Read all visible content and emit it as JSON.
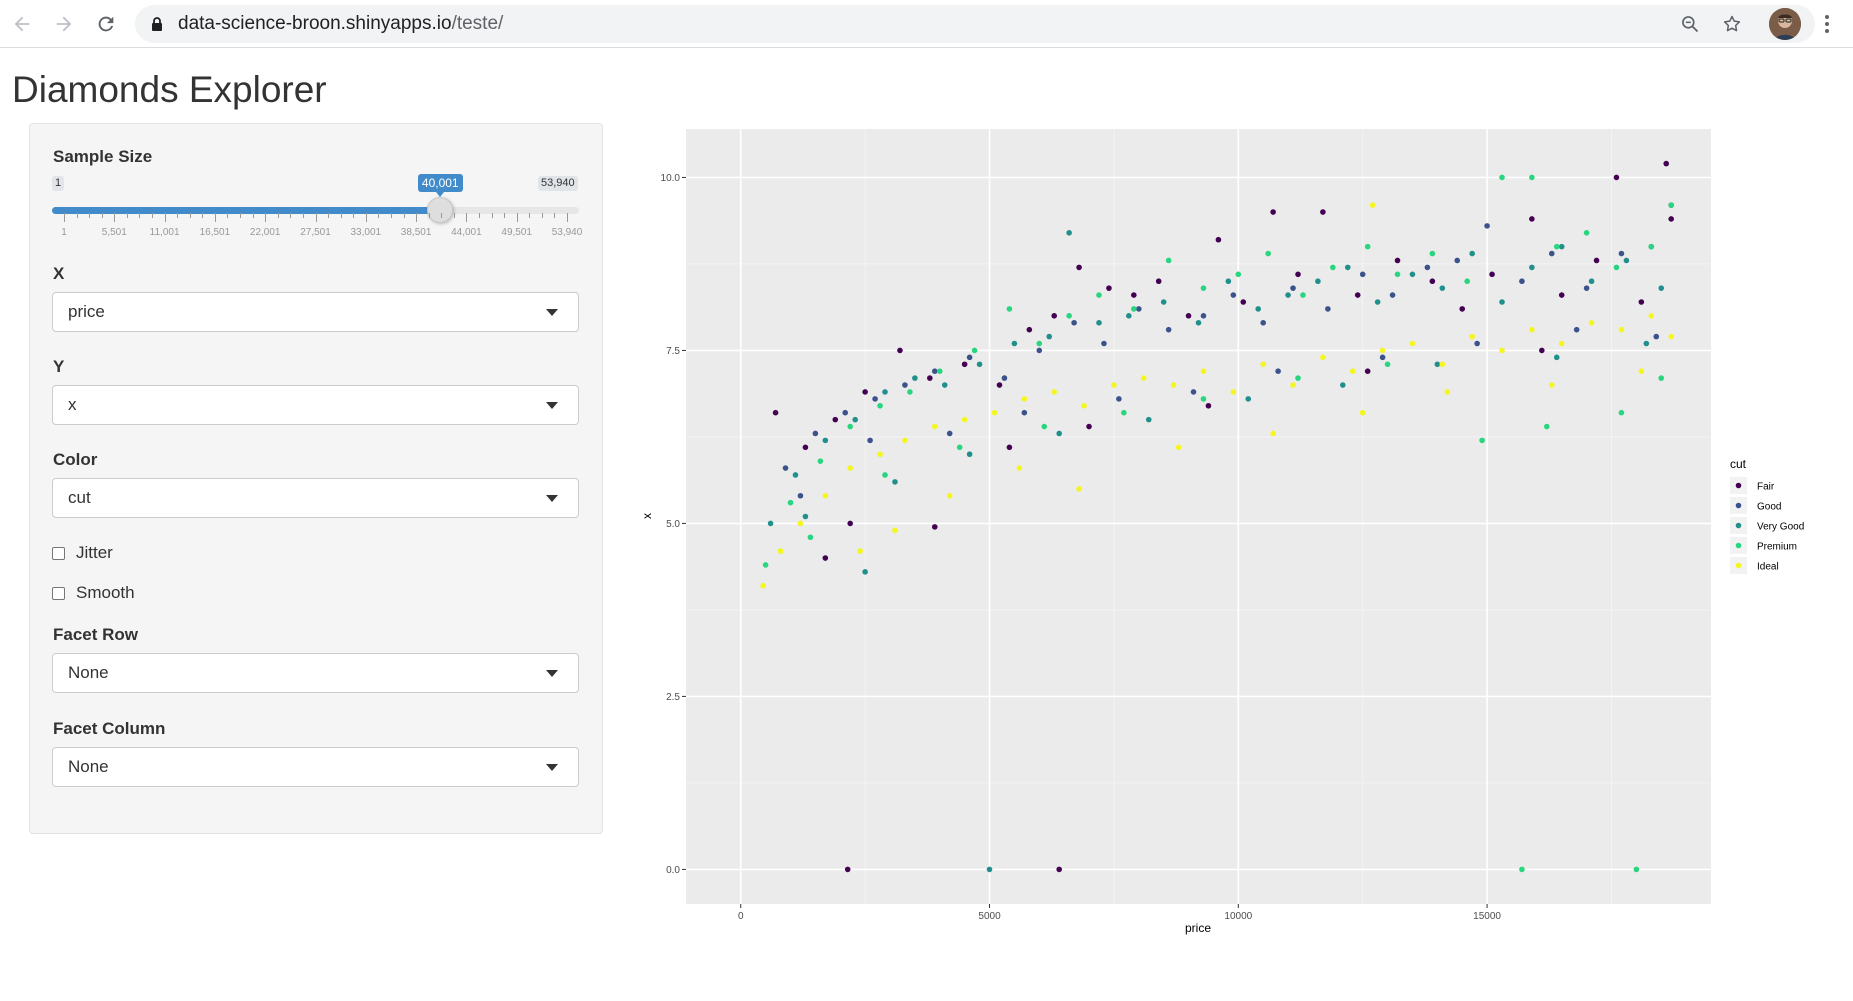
{
  "browser": {
    "url_host": "data-science-broon.shinyapps.io",
    "url_path": "/teste/"
  },
  "app": {
    "title": "Diamonds Explorer"
  },
  "sidebar": {
    "sample_size": {
      "label": "Sample Size",
      "min_label": "1",
      "max_label": "53,940",
      "value_label": "40,001",
      "value": 40001,
      "min": 1,
      "max": 53940,
      "ticks": [
        "1",
        "5,501",
        "11,001",
        "16,501",
        "22,001",
        "27,501",
        "33,001",
        "38,501",
        "44,001",
        "49,501",
        "53,940"
      ]
    },
    "x": {
      "label": "X",
      "value": "price"
    },
    "y": {
      "label": "Y",
      "value": "x"
    },
    "color": {
      "label": "Color",
      "value": "cut"
    },
    "jitter": {
      "label": "Jitter",
      "checked": false
    },
    "smooth": {
      "label": "Smooth",
      "checked": false
    },
    "facet_row": {
      "label": "Facet Row",
      "value": "None"
    },
    "facet_column": {
      "label": "Facet Column",
      "value": "None"
    }
  },
  "chart_data": {
    "type": "scatter",
    "xlabel": "price",
    "ylabel": "x",
    "xlim": [
      -1100,
      19500
    ],
    "ylim": [
      -0.5,
      10.7
    ],
    "x_ticks": [
      0,
      5000,
      10000,
      15000
    ],
    "x_tick_labels": [
      "0",
      "5000",
      "10000",
      "15000"
    ],
    "y_ticks": [
      0,
      2.5,
      5,
      7.5,
      10
    ],
    "y_tick_labels": [
      "0.0",
      "2.5",
      "5.0",
      "7.5",
      "10.0"
    ],
    "grid": true,
    "legend": {
      "title": "cut",
      "position": "right",
      "entries": [
        {
          "name": "Fair",
          "color": "#440154"
        },
        {
          "name": "Good",
          "color": "#3b528b"
        },
        {
          "name": "Very Good",
          "color": "#21908c"
        },
        {
          "name": "Premium",
          "color": "#27d67f"
        },
        {
          "name": "Ideal",
          "color": "#f5f51f"
        }
      ]
    },
    "series": [
      {
        "name": "Fair",
        "color": "#440154",
        "points": [
          [
            700,
            6.6
          ],
          [
            1300,
            6.1
          ],
          [
            1900,
            6.5
          ],
          [
            2500,
            6.9
          ],
          [
            3200,
            7.5
          ],
          [
            3800,
            7.1
          ],
          [
            4500,
            7.3
          ],
          [
            5200,
            7.0
          ],
          [
            5800,
            7.8
          ],
          [
            6300,
            8.0
          ],
          [
            6800,
            8.7
          ],
          [
            7400,
            8.4
          ],
          [
            7900,
            8.3
          ],
          [
            8400,
            8.5
          ],
          [
            9000,
            8.0
          ],
          [
            9600,
            9.1
          ],
          [
            10100,
            8.2
          ],
          [
            10700,
            9.5
          ],
          [
            11200,
            8.6
          ],
          [
            11700,
            9.5
          ],
          [
            12400,
            8.3
          ],
          [
            13200,
            8.8
          ],
          [
            13900,
            8.5
          ],
          [
            14500,
            8.1
          ],
          [
            15100,
            8.6
          ],
          [
            15900,
            9.4
          ],
          [
            16500,
            8.3
          ],
          [
            17200,
            8.8
          ],
          [
            17600,
            10.0
          ],
          [
            18100,
            8.2
          ],
          [
            18600,
            10.2
          ],
          [
            18700,
            9.4
          ],
          [
            2200,
            5.0
          ],
          [
            3900,
            4.95
          ],
          [
            1700,
            4.5
          ],
          [
            5400,
            6.1
          ],
          [
            7000,
            6.4
          ],
          [
            9400,
            6.7
          ],
          [
            12600,
            7.2
          ],
          [
            16100,
            7.5
          ],
          [
            2150,
            0
          ],
          [
            6400,
            0
          ]
        ]
      },
      {
        "name": "Good",
        "color": "#3b528b",
        "points": [
          [
            900,
            5.8
          ],
          [
            1500,
            6.3
          ],
          [
            2100,
            6.6
          ],
          [
            2700,
            6.8
          ],
          [
            3300,
            7.0
          ],
          [
            3900,
            7.2
          ],
          [
            4600,
            7.4
          ],
          [
            5300,
            7.1
          ],
          [
            6000,
            7.5
          ],
          [
            6700,
            7.9
          ],
          [
            7300,
            7.6
          ],
          [
            8000,
            8.1
          ],
          [
            8600,
            7.8
          ],
          [
            9300,
            8.0
          ],
          [
            9900,
            8.3
          ],
          [
            10500,
            7.9
          ],
          [
            11100,
            8.4
          ],
          [
            11800,
            8.1
          ],
          [
            12500,
            8.6
          ],
          [
            13100,
            8.3
          ],
          [
            13800,
            8.7
          ],
          [
            14400,
            8.8
          ],
          [
            15000,
            9.3
          ],
          [
            15700,
            8.5
          ],
          [
            16300,
            8.9
          ],
          [
            17000,
            8.4
          ],
          [
            17700,
            8.9
          ],
          [
            18300,
            9.0
          ],
          [
            18700,
            9.6
          ],
          [
            1200,
            5.4
          ],
          [
            2600,
            6.2
          ],
          [
            4200,
            6.3
          ],
          [
            5700,
            6.6
          ],
          [
            7600,
            6.8
          ],
          [
            9100,
            6.9
          ],
          [
            10800,
            7.2
          ],
          [
            12900,
            7.4
          ],
          [
            14800,
            7.6
          ],
          [
            16800,
            7.8
          ],
          [
            18400,
            7.7
          ]
        ]
      },
      {
        "name": "Very Good",
        "color": "#21908c",
        "points": [
          [
            600,
            5.0
          ],
          [
            1100,
            5.7
          ],
          [
            1700,
            6.2
          ],
          [
            2300,
            6.5
          ],
          [
            2900,
            6.9
          ],
          [
            3500,
            7.1
          ],
          [
            4100,
            7.0
          ],
          [
            4800,
            7.3
          ],
          [
            5500,
            7.6
          ],
          [
            6200,
            7.7
          ],
          [
            6600,
            9.2
          ],
          [
            7200,
            7.9
          ],
          [
            7800,
            8.0
          ],
          [
            8500,
            8.2
          ],
          [
            9200,
            7.9
          ],
          [
            9800,
            8.5
          ],
          [
            10400,
            8.1
          ],
          [
            11000,
            8.3
          ],
          [
            11600,
            8.5
          ],
          [
            12200,
            8.7
          ],
          [
            12800,
            8.2
          ],
          [
            13500,
            8.6
          ],
          [
            14100,
            8.4
          ],
          [
            14700,
            8.9
          ],
          [
            15300,
            8.2
          ],
          [
            15900,
            8.7
          ],
          [
            16500,
            9.0
          ],
          [
            17100,
            8.5
          ],
          [
            17800,
            8.8
          ],
          [
            18500,
            8.4
          ],
          [
            2500,
            4.3
          ],
          [
            1300,
            5.1
          ],
          [
            3100,
            5.6
          ],
          [
            4600,
            6.0
          ],
          [
            6400,
            6.3
          ],
          [
            8200,
            6.5
          ],
          [
            10200,
            6.8
          ],
          [
            12100,
            7.0
          ],
          [
            14000,
            7.3
          ],
          [
            16400,
            7.4
          ],
          [
            18200,
            7.6
          ],
          [
            5000,
            0
          ]
        ]
      },
      {
        "name": "Premium",
        "color": "#27d67f",
        "points": [
          [
            500,
            4.4
          ],
          [
            1000,
            5.3
          ],
          [
            1600,
            5.9
          ],
          [
            2200,
            6.4
          ],
          [
            2800,
            6.7
          ],
          [
            3400,
            6.9
          ],
          [
            4000,
            7.2
          ],
          [
            4700,
            7.5
          ],
          [
            5400,
            8.1
          ],
          [
            6000,
            7.6
          ],
          [
            6600,
            8.0
          ],
          [
            7200,
            8.3
          ],
          [
            7900,
            8.1
          ],
          [
            8600,
            8.8
          ],
          [
            9300,
            8.4
          ],
          [
            10000,
            8.6
          ],
          [
            10600,
            8.9
          ],
          [
            11300,
            8.3
          ],
          [
            11900,
            8.7
          ],
          [
            12600,
            9.0
          ],
          [
            13200,
            8.6
          ],
          [
            13900,
            8.9
          ],
          [
            14600,
            8.5
          ],
          [
            15300,
            10.0
          ],
          [
            15900,
            10.0
          ],
          [
            16400,
            9.0
          ],
          [
            17000,
            9.2
          ],
          [
            17600,
            8.7
          ],
          [
            18300,
            9.0
          ],
          [
            18700,
            9.6
          ],
          [
            1400,
            4.8
          ],
          [
            2900,
            5.7
          ],
          [
            4400,
            6.1
          ],
          [
            6100,
            6.4
          ],
          [
            7700,
            6.6
          ],
          [
            9300,
            6.8
          ],
          [
            11200,
            7.1
          ],
          [
            13000,
            7.3
          ],
          [
            14900,
            6.2
          ],
          [
            16200,
            6.4
          ],
          [
            17700,
            6.6
          ],
          [
            18500,
            7.1
          ],
          [
            15700,
            0
          ],
          [
            18000,
            0
          ]
        ]
      },
      {
        "name": "Ideal",
        "color": "#f5f51f",
        "points": [
          [
            450,
            4.1
          ],
          [
            800,
            4.6
          ],
          [
            1200,
            5.0
          ],
          [
            1700,
            5.4
          ],
          [
            2200,
            5.8
          ],
          [
            2800,
            6.0
          ],
          [
            3300,
            6.2
          ],
          [
            3900,
            6.4
          ],
          [
            4500,
            6.5
          ],
          [
            5100,
            6.6
          ],
          [
            5700,
            6.8
          ],
          [
            6300,
            6.9
          ],
          [
            6900,
            6.7
          ],
          [
            7500,
            7.0
          ],
          [
            8100,
            7.1
          ],
          [
            8700,
            7.0
          ],
          [
            9300,
            7.2
          ],
          [
            9900,
            6.9
          ],
          [
            10500,
            7.3
          ],
          [
            11100,
            7.0
          ],
          [
            11700,
            7.4
          ],
          [
            12300,
            7.2
          ],
          [
            12700,
            9.6
          ],
          [
            12900,
            7.5
          ],
          [
            13500,
            7.6
          ],
          [
            14100,
            7.3
          ],
          [
            14700,
            7.7
          ],
          [
            15300,
            7.5
          ],
          [
            15900,
            7.8
          ],
          [
            16500,
            7.6
          ],
          [
            17100,
            7.9
          ],
          [
            17700,
            7.8
          ],
          [
            18300,
            8.0
          ],
          [
            18700,
            7.7
          ],
          [
            2400,
            4.6
          ],
          [
            3100,
            4.9
          ],
          [
            4200,
            5.4
          ],
          [
            5600,
            5.8
          ],
          [
            6800,
            5.5
          ],
          [
            8800,
            6.1
          ],
          [
            10700,
            6.3
          ],
          [
            12500,
            6.6
          ],
          [
            14200,
            6.9
          ],
          [
            16300,
            7.0
          ],
          [
            18100,
            7.2
          ]
        ]
      }
    ]
  }
}
